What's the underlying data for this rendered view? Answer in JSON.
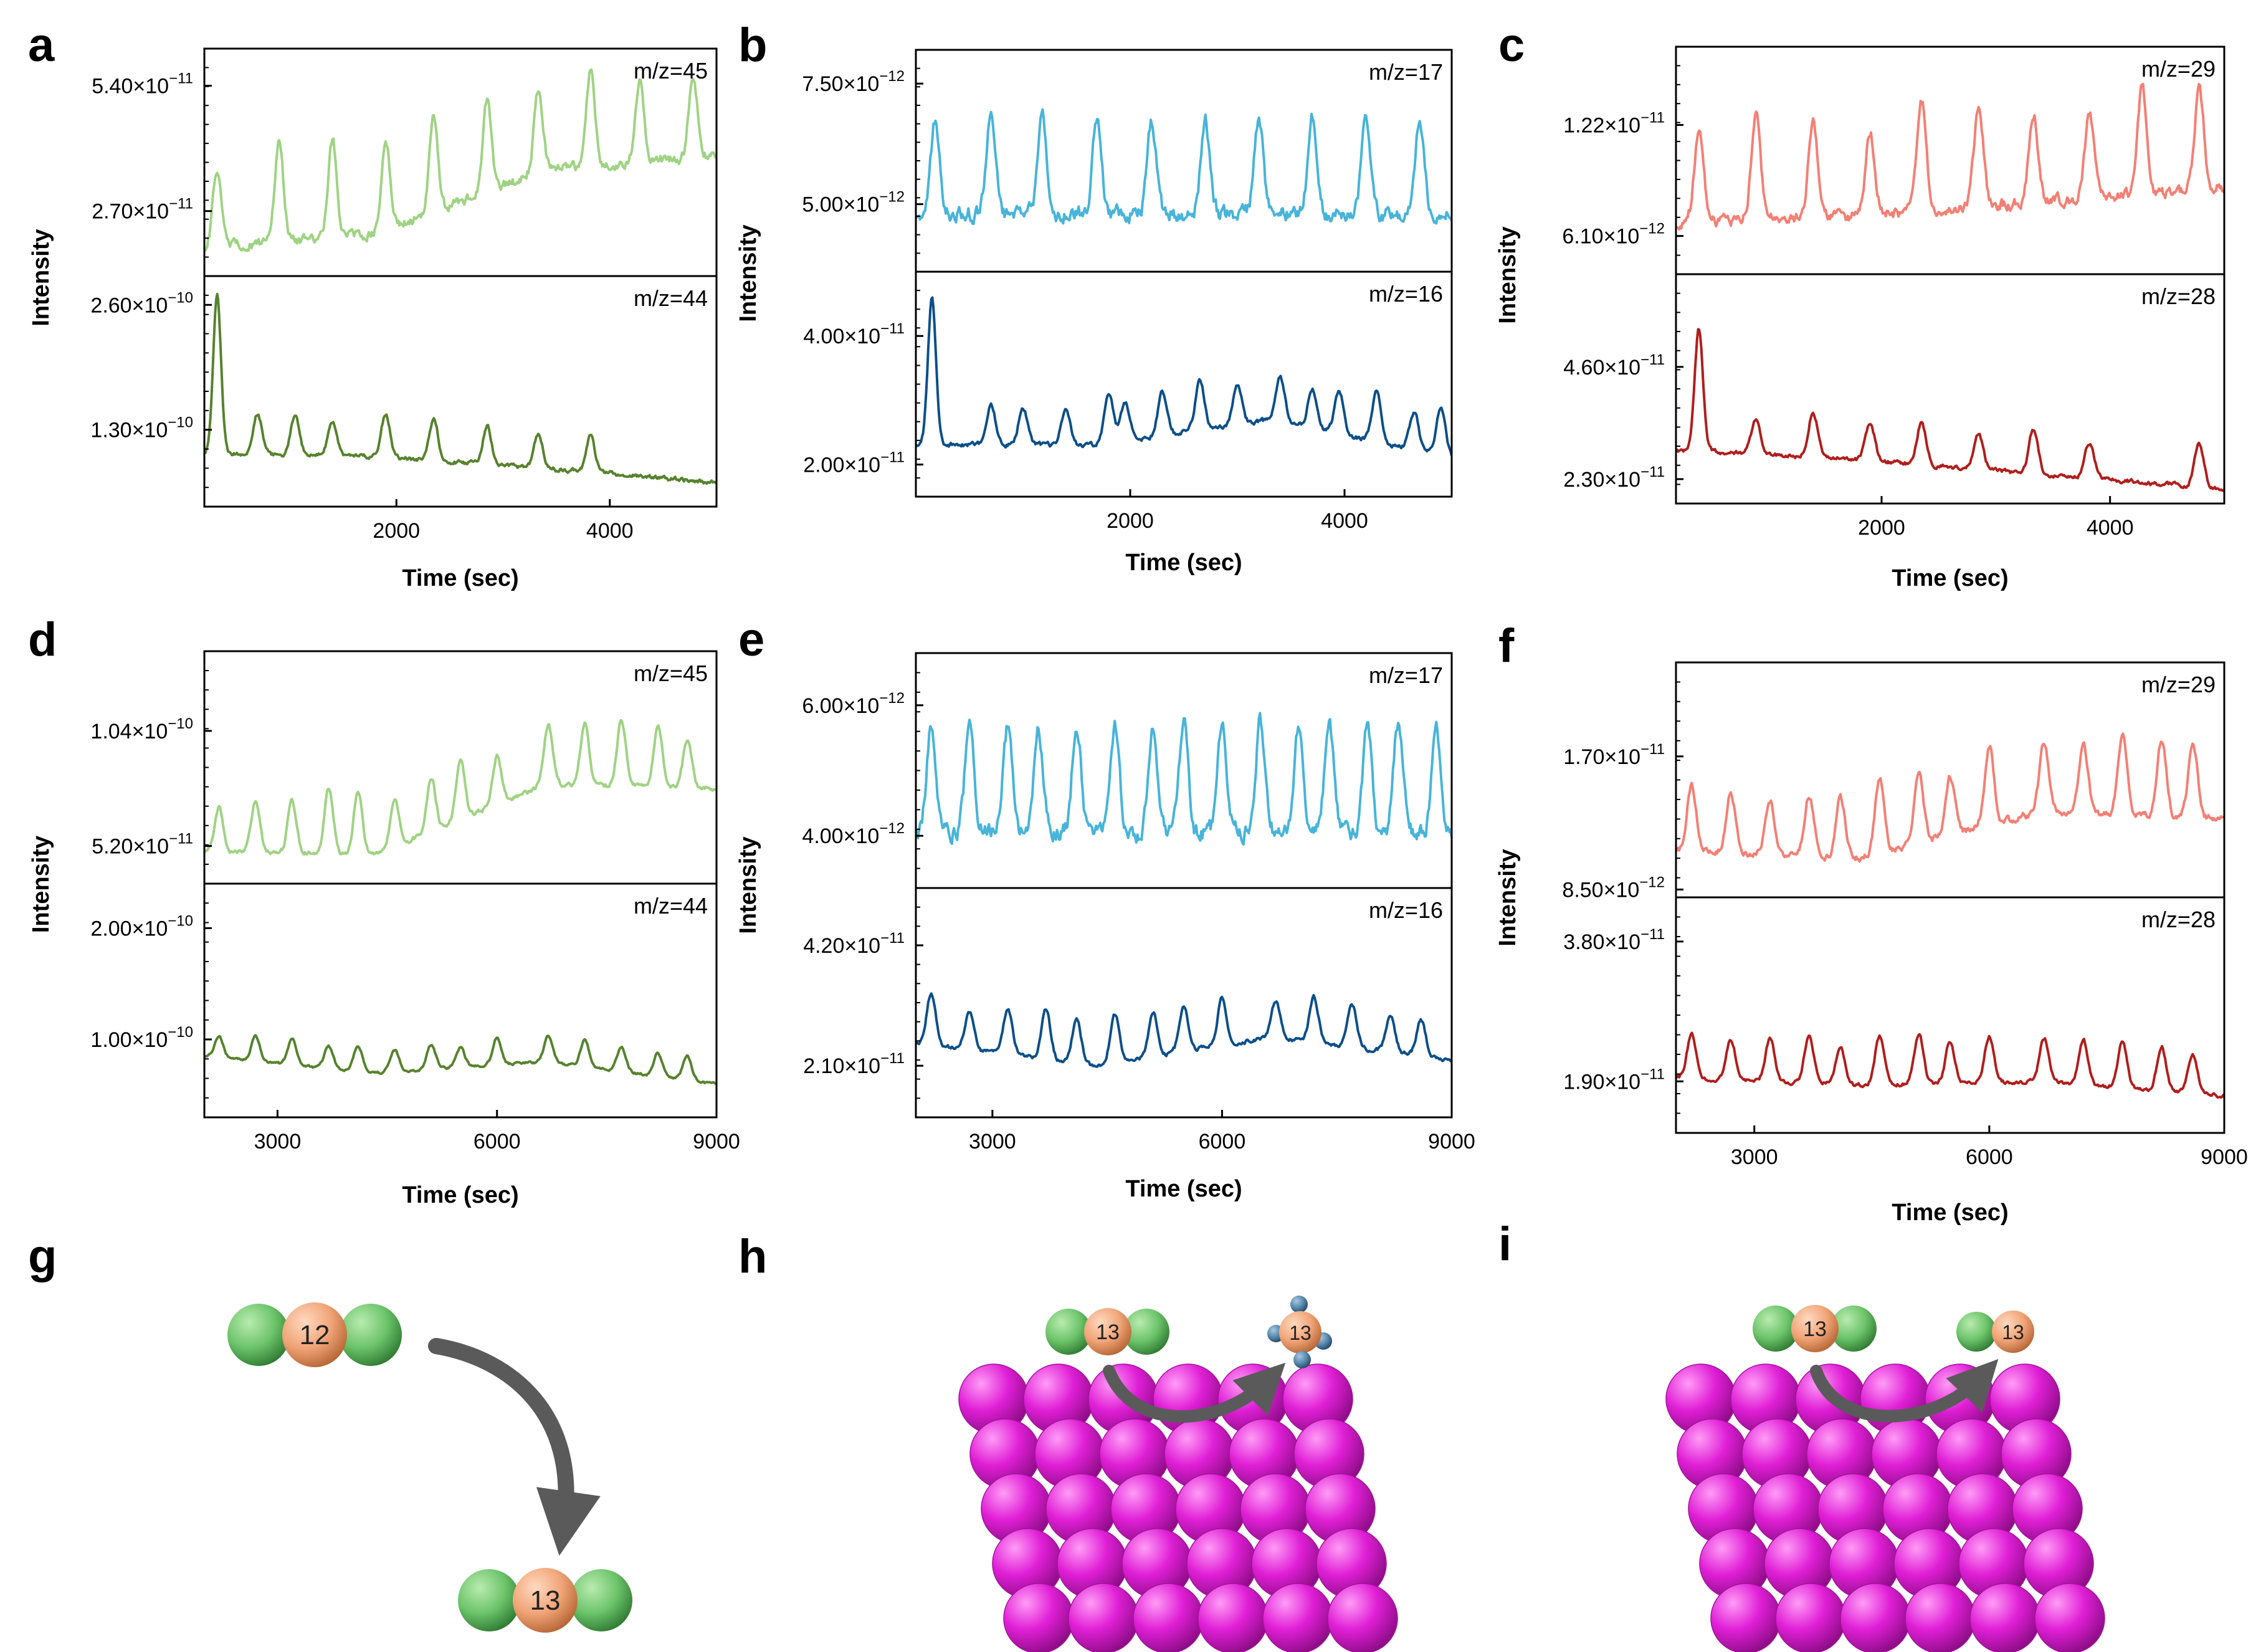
{
  "panel_labels": [
    "a",
    "b",
    "c",
    "d",
    "e",
    "f",
    "g",
    "h",
    "i"
  ],
  "chart_data": [
    {
      "id": "a",
      "type": "line",
      "xlabel": "Time (sec)",
      "ylabel": "Intensity",
      "xlim": [
        200,
        5000
      ],
      "xticks": [
        2000,
        4000
      ],
      "xtick_labels": [
        "2000",
        "4000"
      ],
      "subplots": [
        {
          "label": "m/z=45",
          "color": "#9fd383",
          "ylim": [
            1.3e-11,
            6.2e-11
          ],
          "yticks": [
            5.4e-11,
            2.7e-11
          ],
          "ytick_labels": [
            "5.40×10",
            "2.70×10"
          ],
          "ytick_exp": [
            "−11",
            "−11"
          ],
          "baseline": [
            1.9e-11,
            2.2e-11,
            3.6e-11,
            3.9e-11
          ],
          "amplitude": [
            1.2e-11,
            2.2e-11
          ],
          "peak_times": [
            320,
            900,
            1400,
            1900,
            2350,
            2850,
            3330,
            3820,
            4280,
            4780
          ]
        },
        {
          "label": "m/z=44",
          "color": "#56832d",
          "ylim": [
            5e-11,
            2.9e-10
          ],
          "yticks": [
            2.6e-10,
            1.3e-10
          ],
          "ytick_labels": [
            "2.60×10",
            "1.30×10"
          ],
          "ytick_exp": [
            "−10",
            "−10"
          ],
          "baseline": [
            1.05e-10,
            1.02e-10,
            9e-11,
            7.5e-11
          ],
          "amplitude": [
            2.5e-11,
            4.5e-11
          ],
          "peak_times": [
            700,
            1050,
            1400,
            1900,
            2350,
            2850,
            3330,
            3820
          ],
          "initial_peak": {
            "t": 320,
            "value": 2.7e-10
          }
        }
      ]
    },
    {
      "id": "b",
      "type": "line",
      "xlabel": "Time (sec)",
      "ylabel": "Intensity",
      "xlim": [
        0,
        5000
      ],
      "xticks": [
        2000,
        4000
      ],
      "xtick_labels": [
        "2000",
        "4000"
      ],
      "subplots": [
        {
          "label": "m/z=17",
          "color": "#47b4da",
          "ylim": [
            3.6e-12,
            8.2e-12
          ],
          "yticks": [
            7.5e-12,
            5e-12
          ],
          "ytick_labels": [
            "7.50×10",
            "5.00×10"
          ],
          "ytick_exp": [
            "−12",
            "−12"
          ],
          "baseline": [
            4.8e-12,
            4.8e-12,
            4.8e-12,
            4.8e-12
          ],
          "amplitude": [
            1.8e-12,
            2e-12
          ],
          "peak_times": [
            180,
            700,
            1180,
            1690,
            2200,
            2700,
            3200,
            3700,
            4200,
            4700
          ]
        },
        {
          "label": "m/z=16",
          "color": "#0c4f8a",
          "ylim": [
            1.5e-11,
            5e-11
          ],
          "yticks": [
            4e-11,
            2e-11
          ],
          "ytick_labels": [
            "4.00×10",
            "2.00×10"
          ],
          "ytick_exp": [
            "−11",
            "−11"
          ],
          "baseline": [
            2.3e-11,
            2.3e-11,
            2.7e-11,
            2.1e-11
          ],
          "amplitude": [
            4e-12,
            8e-12
          ],
          "peak_times": [
            700,
            1000,
            1400,
            1800,
            1950,
            2300,
            2650,
            3000,
            3400,
            3700,
            3950,
            4300,
            4650,
            4900
          ],
          "initial_peak": {
            "t": 150,
            "value": 4.6e-11
          }
        }
      ]
    },
    {
      "id": "c",
      "type": "line",
      "xlabel": "Time (sec)",
      "ylabel": "Intensity",
      "xlim": [
        200,
        5000
      ],
      "xticks": [
        2000,
        4000
      ],
      "xtick_labels": [
        "2000",
        "4000"
      ],
      "subplots": [
        {
          "label": "m/z=29",
          "color": "#f47f74",
          "ylim": [
            4e-12,
            1.65e-11
          ],
          "yticks": [
            1.22e-11,
            6.1e-12
          ],
          "ytick_labels": [
            "1.22×10",
            "6.10×10"
          ],
          "ytick_exp": [
            "−11",
            "−12"
          ],
          "baseline": [
            6.8e-12,
            7.2e-12,
            8e-12,
            8.8e-12
          ],
          "amplitude": [
            3.5e-12,
            6e-12
          ],
          "peak_times": [
            400,
            900,
            1400,
            1900,
            2350,
            2850,
            3330,
            3820,
            4280,
            4780
          ]
        },
        {
          "label": "m/z=28",
          "color": "#b01e1c",
          "ylim": [
            1.8e-11,
            6.5e-11
          ],
          "yticks": [
            4.6e-11,
            2.3e-11
          ],
          "ytick_labels": [
            "4.60×10",
            "2.30×10"
          ],
          "ytick_exp": [
            "−11",
            "−11"
          ],
          "baseline": [
            2.9e-11,
            2.7e-11,
            2.4e-11,
            2.1e-11
          ],
          "amplitude": [
            5e-12,
            1e-11
          ],
          "peak_times": [
            900,
            1400,
            1900,
            2350,
            2850,
            3330,
            3820,
            4780
          ],
          "initial_peak": {
            "t": 400,
            "value": 5.4e-11
          }
        }
      ]
    },
    {
      "id": "d",
      "type": "line",
      "xlabel": "Time (sec)",
      "ylabel": "Intensity",
      "xlim": [
        2000,
        9000
      ],
      "xticks": [
        3000,
        6000,
        9000
      ],
      "xtick_labels": [
        "3000",
        "6000",
        "9000"
      ],
      "subplots": [
        {
          "label": "m/z=45",
          "color": "#9fd383",
          "ylim": [
            3.5e-11,
            1.4e-10
          ],
          "yticks": [
            1.04e-10,
            5.2e-11
          ],
          "ytick_labels": [
            "1.04×10",
            "5.20×10"
          ],
          "ytick_exp": [
            "−10",
            "−11"
          ],
          "baseline": [
            5e-11,
            4.8e-11,
            8e-11,
            7.8e-11
          ],
          "amplitude": [
            1.2e-11,
            3e-11
          ],
          "peak_times": [
            2200,
            2700,
            3200,
            3700,
            4100,
            4600,
            5100,
            5500,
            6000,
            6700,
            7200,
            7700,
            8200,
            8600
          ]
        },
        {
          "label": "m/z=44",
          "color": "#56832d",
          "ylim": [
            3e-11,
            2.4e-10
          ],
          "yticks": [
            2e-10,
            1e-10
          ],
          "ytick_labels": [
            "2.00×10",
            "1.00×10"
          ],
          "ytick_exp": [
            "−10",
            "−10"
          ],
          "baseline": [
            8.5e-11,
            7e-11,
            8e-11,
            6e-11
          ],
          "amplitude": [
            1.2e-11,
            2.5e-11
          ],
          "peak_times": [
            2200,
            2700,
            3200,
            3700,
            4100,
            4600,
            5100,
            5500,
            6000,
            6700,
            7200,
            7700,
            8200,
            8600
          ]
        }
      ]
    },
    {
      "id": "e",
      "type": "line",
      "xlabel": "Time (sec)",
      "ylabel": "Intensity",
      "xlim": [
        2000,
        9000
      ],
      "xticks": [
        3000,
        6000,
        9000
      ],
      "xtick_labels": [
        "3000",
        "6000",
        "9000"
      ],
      "subplots": [
        {
          "label": "m/z=17",
          "color": "#47b4da",
          "ylim": [
            3.2e-12,
            6.8e-12
          ],
          "yticks": [
            6e-12,
            4e-12
          ],
          "ytick_labels": [
            "6.00×10",
            "4.00×10"
          ],
          "ytick_exp": [
            "−12",
            "−12"
          ],
          "baseline": [
            4.05e-12,
            4.05e-12,
            4.05e-12,
            4.05e-12
          ],
          "amplitude": [
            1.5e-12,
            1.7e-12
          ],
          "peak_times": [
            2200,
            2700,
            3200,
            3600,
            4100,
            4600,
            5100,
            5500,
            6000,
            6500,
            7000,
            7400,
            7900,
            8300,
            8800
          ]
        },
        {
          "label": "m/z=16",
          "color": "#0c4f8a",
          "ylim": [
            1.2e-11,
            5.2e-11
          ],
          "yticks": [
            4.2e-11,
            2.1e-11
          ],
          "ytick_labels": [
            "4.20×10",
            "2.10×10"
          ],
          "ytick_exp": [
            "−11",
            "−11"
          ],
          "baseline": [
            2.5e-11,
            2.1e-11,
            2.6e-11,
            2.2e-11
          ],
          "amplitude": [
            4e-12,
            9e-12
          ],
          "peak_times": [
            2200,
            2700,
            3200,
            3700,
            4100,
            4600,
            5100,
            5500,
            6000,
            6700,
            7200,
            7700,
            8200,
            8600
          ]
        }
      ]
    },
    {
      "id": "f",
      "type": "line",
      "xlabel": "Time (sec)",
      "ylabel": "Intensity",
      "xlim": [
        2000,
        9000
      ],
      "xticks": [
        3000,
        6000,
        9000
      ],
      "xtick_labels": [
        "3000",
        "6000",
        "9000"
      ],
      "subplots": [
        {
          "label": "m/z=29",
          "color": "#f47f74",
          "ylim": [
            8e-12,
            2.3e-11
          ],
          "yticks": [
            1.7e-11,
            8.5e-12
          ],
          "ytick_labels": [
            "1.70×10",
            "8.50×10"
          ],
          "ytick_exp": [
            "−11",
            "−12"
          ],
          "baseline": [
            1.1e-11,
            1.05e-11,
            1.35e-11,
            1.3e-11
          ],
          "amplitude": [
            2.5e-12,
            5e-12
          ],
          "peak_times": [
            2200,
            2700,
            3200,
            3700,
            4100,
            4600,
            5100,
            5500,
            6000,
            6700,
            7200,
            7700,
            8200,
            8600
          ]
        },
        {
          "label": "m/z=28",
          "color": "#b01e1c",
          "ylim": [
            1.2e-11,
            4.4e-11
          ],
          "yticks": [
            3.8e-11,
            1.9e-11
          ],
          "ytick_labels": [
            "3.80×10",
            "1.90×10"
          ],
          "ytick_exp": [
            "−11",
            "−11"
          ],
          "baseline": [
            1.95e-11,
            1.85e-11,
            1.9e-11,
            1.7e-11
          ],
          "amplitude": [
            3e-12,
            7e-12
          ],
          "peak_times": [
            2200,
            2700,
            3200,
            3700,
            4100,
            4600,
            5100,
            5500,
            6000,
            6700,
            7200,
            7700,
            8200,
            8600
          ]
        }
      ]
    }
  ],
  "schematics": {
    "g": {
      "molecule_before": "12",
      "molecule_after": "13"
    },
    "h": {
      "molecule_before": "13",
      "molecule_after": "13"
    },
    "i": {
      "molecule_before": "13",
      "molecule_after": "13"
    }
  },
  "colors": {
    "atom_green": "#6cc46a",
    "atom_orange": "#f0a477",
    "surface": "#e01fd6",
    "hydrogen": "#4f81a6",
    "arrow": "#5a5a5a"
  }
}
